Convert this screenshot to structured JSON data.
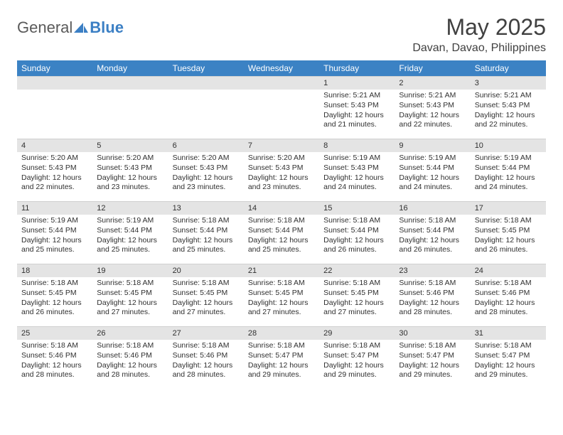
{
  "logo": {
    "part1": "General",
    "part2": "Blue"
  },
  "title": "May 2025",
  "location": "Davan, Davao, Philippines",
  "days_of_week": [
    "Sunday",
    "Monday",
    "Tuesday",
    "Wednesday",
    "Thursday",
    "Friday",
    "Saturday"
  ],
  "header_bg": "#3b82c4",
  "header_fg": "#ffffff",
  "daynum_bg": "#e4e4e4",
  "text_color": "#303030",
  "title_color": "#404040",
  "logo_blue": "#3b7fc4",
  "weeks": [
    [
      null,
      null,
      null,
      null,
      {
        "n": "1",
        "sr": "5:21 AM",
        "ss": "5:43 PM",
        "dl": "12 hours and 21 minutes."
      },
      {
        "n": "2",
        "sr": "5:21 AM",
        "ss": "5:43 PM",
        "dl": "12 hours and 22 minutes."
      },
      {
        "n": "3",
        "sr": "5:21 AM",
        "ss": "5:43 PM",
        "dl": "12 hours and 22 minutes."
      }
    ],
    [
      {
        "n": "4",
        "sr": "5:20 AM",
        "ss": "5:43 PM",
        "dl": "12 hours and 22 minutes."
      },
      {
        "n": "5",
        "sr": "5:20 AM",
        "ss": "5:43 PM",
        "dl": "12 hours and 23 minutes."
      },
      {
        "n": "6",
        "sr": "5:20 AM",
        "ss": "5:43 PM",
        "dl": "12 hours and 23 minutes."
      },
      {
        "n": "7",
        "sr": "5:20 AM",
        "ss": "5:43 PM",
        "dl": "12 hours and 23 minutes."
      },
      {
        "n": "8",
        "sr": "5:19 AM",
        "ss": "5:43 PM",
        "dl": "12 hours and 24 minutes."
      },
      {
        "n": "9",
        "sr": "5:19 AM",
        "ss": "5:44 PM",
        "dl": "12 hours and 24 minutes."
      },
      {
        "n": "10",
        "sr": "5:19 AM",
        "ss": "5:44 PM",
        "dl": "12 hours and 24 minutes."
      }
    ],
    [
      {
        "n": "11",
        "sr": "5:19 AM",
        "ss": "5:44 PM",
        "dl": "12 hours and 25 minutes."
      },
      {
        "n": "12",
        "sr": "5:19 AM",
        "ss": "5:44 PM",
        "dl": "12 hours and 25 minutes."
      },
      {
        "n": "13",
        "sr": "5:18 AM",
        "ss": "5:44 PM",
        "dl": "12 hours and 25 minutes."
      },
      {
        "n": "14",
        "sr": "5:18 AM",
        "ss": "5:44 PM",
        "dl": "12 hours and 25 minutes."
      },
      {
        "n": "15",
        "sr": "5:18 AM",
        "ss": "5:44 PM",
        "dl": "12 hours and 26 minutes."
      },
      {
        "n": "16",
        "sr": "5:18 AM",
        "ss": "5:44 PM",
        "dl": "12 hours and 26 minutes."
      },
      {
        "n": "17",
        "sr": "5:18 AM",
        "ss": "5:45 PM",
        "dl": "12 hours and 26 minutes."
      }
    ],
    [
      {
        "n": "18",
        "sr": "5:18 AM",
        "ss": "5:45 PM",
        "dl": "12 hours and 26 minutes."
      },
      {
        "n": "19",
        "sr": "5:18 AM",
        "ss": "5:45 PM",
        "dl": "12 hours and 27 minutes."
      },
      {
        "n": "20",
        "sr": "5:18 AM",
        "ss": "5:45 PM",
        "dl": "12 hours and 27 minutes."
      },
      {
        "n": "21",
        "sr": "5:18 AM",
        "ss": "5:45 PM",
        "dl": "12 hours and 27 minutes."
      },
      {
        "n": "22",
        "sr": "5:18 AM",
        "ss": "5:45 PM",
        "dl": "12 hours and 27 minutes."
      },
      {
        "n": "23",
        "sr": "5:18 AM",
        "ss": "5:46 PM",
        "dl": "12 hours and 28 minutes."
      },
      {
        "n": "24",
        "sr": "5:18 AM",
        "ss": "5:46 PM",
        "dl": "12 hours and 28 minutes."
      }
    ],
    [
      {
        "n": "25",
        "sr": "5:18 AM",
        "ss": "5:46 PM",
        "dl": "12 hours and 28 minutes."
      },
      {
        "n": "26",
        "sr": "5:18 AM",
        "ss": "5:46 PM",
        "dl": "12 hours and 28 minutes."
      },
      {
        "n": "27",
        "sr": "5:18 AM",
        "ss": "5:46 PM",
        "dl": "12 hours and 28 minutes."
      },
      {
        "n": "28",
        "sr": "5:18 AM",
        "ss": "5:47 PM",
        "dl": "12 hours and 29 minutes."
      },
      {
        "n": "29",
        "sr": "5:18 AM",
        "ss": "5:47 PM",
        "dl": "12 hours and 29 minutes."
      },
      {
        "n": "30",
        "sr": "5:18 AM",
        "ss": "5:47 PM",
        "dl": "12 hours and 29 minutes."
      },
      {
        "n": "31",
        "sr": "5:18 AM",
        "ss": "5:47 PM",
        "dl": "12 hours and 29 minutes."
      }
    ]
  ],
  "labels": {
    "sunrise": "Sunrise:",
    "sunset": "Sunset:",
    "daylight": "Daylight:"
  }
}
